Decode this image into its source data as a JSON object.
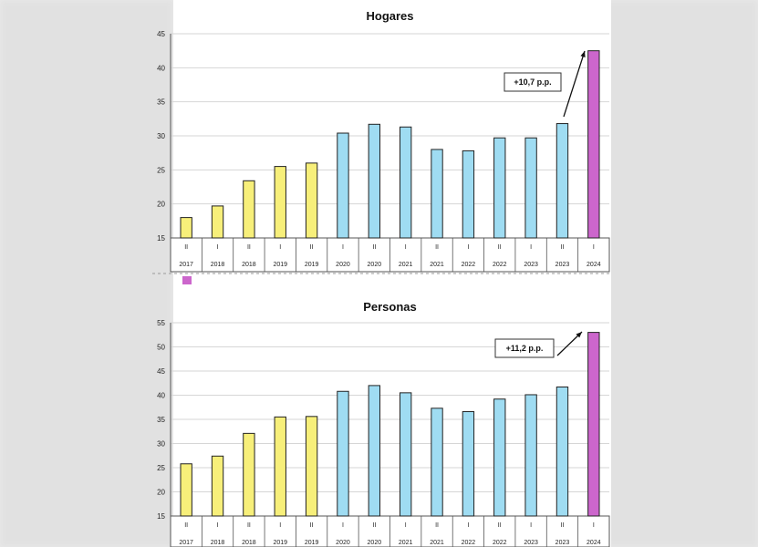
{
  "chart_data": [
    {
      "type": "bar",
      "title": "Hogares",
      "period": [
        "II",
        "I",
        "II",
        "I",
        "II",
        "I",
        "II",
        "I",
        "II",
        "I",
        "II",
        "I",
        "II",
        "I"
      ],
      "year": [
        "2017",
        "2018",
        "2018",
        "2019",
        "2019",
        "2020",
        "2020",
        "2021",
        "2021",
        "2022",
        "2022",
        "2023",
        "2023",
        "2024"
      ],
      "values": [
        18.0,
        19.7,
        23.4,
        25.5,
        26.0,
        30.4,
        31.7,
        31.3,
        28.0,
        27.8,
        29.7,
        29.7,
        31.8,
        42.5
      ],
      "bar_colors": [
        "#f7ef7a",
        "#f7ef7a",
        "#f7ef7a",
        "#f7ef7a",
        "#f7ef7a",
        "#9fdcf2",
        "#9fdcf2",
        "#9fdcf2",
        "#9fdcf2",
        "#9fdcf2",
        "#9fdcf2",
        "#9fdcf2",
        "#9fdcf2",
        "#cc66cc"
      ],
      "ylim": [
        15,
        45
      ],
      "yticks": [
        15,
        20,
        25,
        30,
        35,
        40,
        45
      ],
      "annotation": "+10,7 p.p.",
      "grid": true
    },
    {
      "type": "bar",
      "title": "Personas",
      "period": [
        "II",
        "I",
        "II",
        "I",
        "II",
        "I",
        "II",
        "I",
        "II",
        "I",
        "II",
        "I",
        "II",
        "I"
      ],
      "year": [
        "2017",
        "2018",
        "2018",
        "2019",
        "2019",
        "2020",
        "2020",
        "2021",
        "2021",
        "2022",
        "2022",
        "2023",
        "2023",
        "2024"
      ],
      "values": [
        25.8,
        27.4,
        32.1,
        35.5,
        35.6,
        40.8,
        42.0,
        40.5,
        37.3,
        36.6,
        39.2,
        40.1,
        41.7,
        53.0
      ],
      "bar_colors": [
        "#f7ef7a",
        "#f7ef7a",
        "#f7ef7a",
        "#f7ef7a",
        "#f7ef7a",
        "#9fdcf2",
        "#9fdcf2",
        "#9fdcf2",
        "#9fdcf2",
        "#9fdcf2",
        "#9fdcf2",
        "#9fdcf2",
        "#9fdcf2",
        "#cc66cc"
      ],
      "ylim": [
        15,
        55
      ],
      "yticks": [
        15,
        20,
        25,
        30,
        35,
        40,
        45,
        50,
        55
      ],
      "annotation": "+11,2 p.p.",
      "grid": true
    }
  ],
  "colors": {
    "background": "#e9e9e9",
    "panel": "#ffffff",
    "grid": "#d6d6d6",
    "axis": "#555555",
    "bar_outline": "#222222",
    "legend_marker": "#cc66cc"
  }
}
